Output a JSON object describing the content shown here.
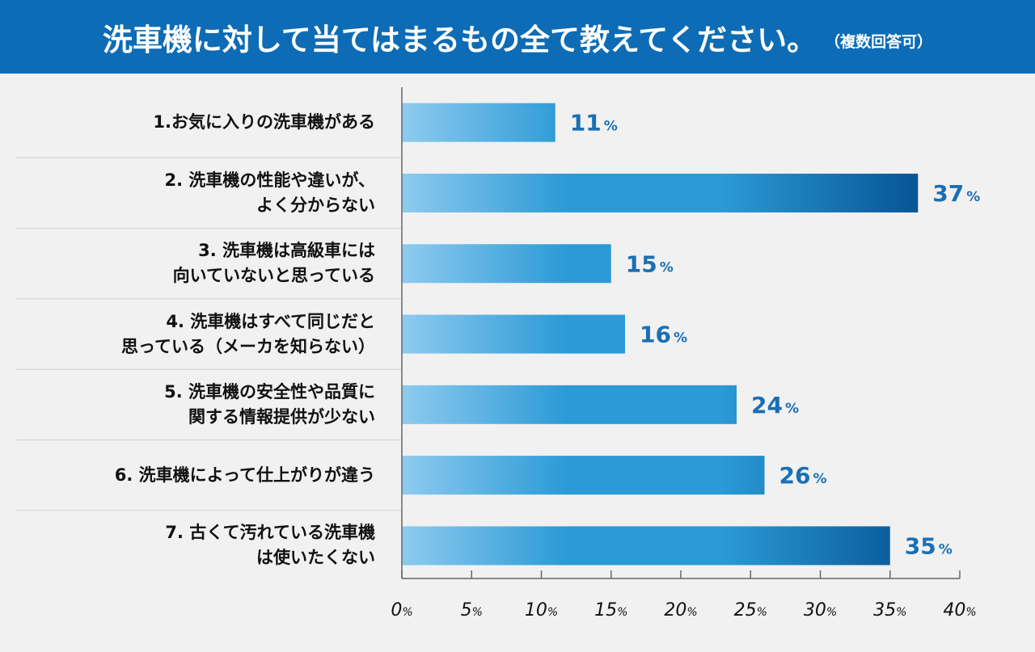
{
  "header": {
    "title": "洗車機に対して当てはまるもの全て教えてください。",
    "note": "（複数回答可）"
  },
  "colors": {
    "header_bg": "#0d6cb5",
    "bar_light": "#8ecbef",
    "bar_mid": "#2b9ad6",
    "bar_dark": "#075595",
    "value_text": "#1a6fb5",
    "axis": "#666666"
  },
  "chart_data": {
    "type": "bar",
    "orientation": "horizontal",
    "categories": [
      [
        "1.お気に入りの洗車機がある"
      ],
      [
        "2. 洗車機の性能や違いが、",
        "よく分からない"
      ],
      [
        "3.  洗車機は高級車には",
        "向いていないと思っている"
      ],
      [
        "4.  洗車機はすべて同じだと",
        "思っている（メーカを知らない）"
      ],
      [
        "5. 洗車機の安全性や品質に",
        "関する情報提供が少ない"
      ],
      [
        "6. 洗車機によって仕上がりが違う"
      ],
      [
        "7. 古くて汚れている洗車機",
        "は使いたくない"
      ]
    ],
    "values": [
      11,
      37,
      15,
      16,
      24,
      26,
      35
    ],
    "value_labels": [
      "11",
      "37",
      "15",
      "16",
      "24",
      "26",
      "35"
    ],
    "unit": "%",
    "xlim": [
      0,
      40
    ],
    "x_ticks": [
      "0",
      "5",
      "10",
      "15",
      "20",
      "25",
      "30",
      "35",
      "40"
    ],
    "grid": false,
    "legend": "none"
  }
}
